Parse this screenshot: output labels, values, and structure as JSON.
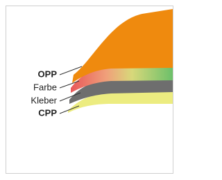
{
  "layers": [
    {
      "label": "OPP"
    },
    {
      "label": "Farbe"
    },
    {
      "label": "Kleber"
    },
    {
      "label": "CPP"
    }
  ]
}
